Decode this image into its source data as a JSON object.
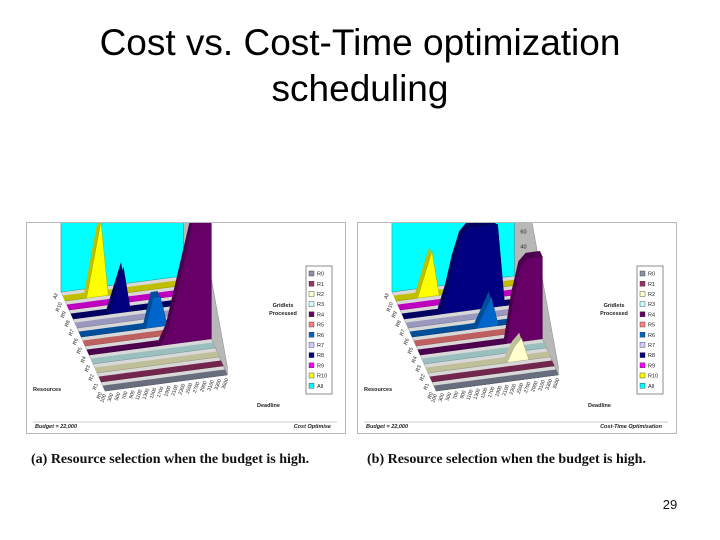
{
  "slide": {
    "title_line1": "Cost vs. Cost-Time optimization",
    "title_line2": "scheduling",
    "page_number": "29"
  },
  "chart_data": [
    {
      "type": "area",
      "panel": "a",
      "footer_left": "Budget = 22,000",
      "footer_right": "Cost Optimise",
      "caption": "(a) Resource selection when the budget is high.",
      "zlabel_line1": "Gridlets",
      "zlabel_line2": "Processed",
      "ylabel": "Resources",
      "xlabel": "Deadline",
      "zlim": [
        0,
        200
      ],
      "z_ticks": [
        "0",
        "20",
        "40",
        "60",
        "80",
        "100",
        "120",
        "140",
        "160",
        "180",
        "200"
      ],
      "x_ticks": [
        "100",
        "300",
        "500",
        "700",
        "900",
        "1100",
        "1300",
        "1500",
        "1700",
        "1900",
        "2100",
        "2300",
        "2500",
        "2700",
        "2900",
        "3100",
        "3300",
        "3500"
      ],
      "legend": [
        "R0",
        "R1",
        "R2",
        "R3",
        "R4",
        "R5",
        "R6",
        "R7",
        "R8",
        "R9",
        "R10",
        "All"
      ],
      "series_order": [
        "All",
        "R10",
        "R9",
        "R8",
        "R7",
        "R6",
        "R5",
        "R4",
        "R3",
        "R2",
        "R1",
        "R0"
      ],
      "colors": {
        "R0": "#8c93a8",
        "R1": "#993366",
        "R2": "#ffffcc",
        "R3": "#ccffff",
        "R4": "#660066",
        "R5": "#ff8080",
        "R6": "#0066cc",
        "R7": "#ccccff",
        "R8": "#000080",
        "R9": "#ff00ff",
        "R10": "#ffff00",
        "All": "#00ffff"
      },
      "series": [
        {
          "name": "All",
          "values": [
            200,
            200,
            200,
            200,
            200,
            200,
            200,
            200,
            200,
            200,
            200,
            200,
            200,
            200,
            200,
            200,
            200,
            200
          ]
        },
        {
          "name": "R10",
          "values": [
            0,
            0,
            0,
            0,
            50,
            100,
            0,
            0,
            0,
            0,
            0,
            0,
            0,
            0,
            0,
            0,
            0,
            0
          ]
        },
        {
          "name": "R9",
          "values": [
            0,
            0,
            0,
            0,
            0,
            0,
            0,
            0,
            0,
            0,
            0,
            0,
            0,
            0,
            0,
            0,
            0,
            0
          ]
        },
        {
          "name": "R8",
          "values": [
            0,
            0,
            0,
            0,
            0,
            0,
            30,
            60,
            0,
            0,
            0,
            0,
            0,
            0,
            0,
            0,
            0,
            0
          ]
        },
        {
          "name": "R7",
          "values": [
            0,
            0,
            0,
            0,
            0,
            0,
            0,
            0,
            0,
            0,
            0,
            0,
            0,
            0,
            0,
            0,
            0,
            0
          ]
        },
        {
          "name": "R6",
          "values": [
            0,
            0,
            0,
            0,
            0,
            0,
            0,
            0,
            0,
            0,
            40,
            40,
            0,
            0,
            0,
            0,
            0,
            0
          ]
        },
        {
          "name": "R5",
          "values": [
            0,
            0,
            0,
            0,
            0,
            0,
            0,
            0,
            0,
            0,
            0,
            0,
            0,
            0,
            0,
            0,
            0,
            0
          ]
        },
        {
          "name": "R4",
          "values": [
            0,
            0,
            0,
            0,
            0,
            0,
            0,
            0,
            0,
            0,
            0,
            20,
            60,
            100,
            140,
            180,
            200,
            200
          ]
        },
        {
          "name": "R3",
          "values": [
            0,
            0,
            0,
            0,
            0,
            0,
            0,
            0,
            0,
            0,
            0,
            0,
            0,
            0,
            0,
            0,
            0,
            0
          ]
        },
        {
          "name": "R2",
          "values": [
            0,
            0,
            0,
            0,
            0,
            0,
            0,
            0,
            0,
            0,
            0,
            0,
            0,
            0,
            0,
            0,
            0,
            0
          ]
        },
        {
          "name": "R1",
          "values": [
            0,
            0,
            0,
            0,
            0,
            0,
            0,
            0,
            0,
            0,
            0,
            0,
            0,
            0,
            0,
            0,
            0,
            0
          ]
        },
        {
          "name": "R0",
          "values": [
            0,
            0,
            0,
            0,
            0,
            0,
            0,
            0,
            0,
            0,
            0,
            0,
            0,
            0,
            0,
            0,
            0,
            0
          ]
        }
      ]
    },
    {
      "type": "area",
      "panel": "b",
      "footer_left": "Budget = 22,000",
      "footer_right": "Cost-Time Optimisation",
      "caption": "(b) Resource selection when the budget is high.",
      "zlabel_line1": "Gridlets",
      "zlabel_line2": "Processed",
      "ylabel": "Resources",
      "xlabel": "Deadline",
      "zlim": [
        0,
        200
      ],
      "z_ticks": [
        "0",
        "20",
        "40",
        "60",
        "80",
        "100",
        "120",
        "140",
        "160",
        "180",
        "200"
      ],
      "x_ticks": [
        "100",
        "300",
        "500",
        "700",
        "900",
        "1100",
        "1300",
        "1500",
        "1700",
        "1900",
        "2100",
        "2300",
        "2500",
        "2700",
        "2900",
        "3100",
        "3300",
        "3500"
      ],
      "legend": [
        "R0",
        "R1",
        "R2",
        "R3",
        "R4",
        "R5",
        "R6",
        "R7",
        "R8",
        "R9",
        "R10",
        "All"
      ],
      "series_order": [
        "All",
        "R10",
        "R9",
        "R8",
        "R7",
        "R6",
        "R5",
        "R4",
        "R3",
        "R2",
        "R1",
        "R0"
      ],
      "colors": {
        "R0": "#8c93a8",
        "R1": "#993366",
        "R2": "#ffffcc",
        "R3": "#ccffff",
        "R4": "#660066",
        "R5": "#ff8080",
        "R6": "#0066cc",
        "R7": "#ccccff",
        "R8": "#000080",
        "R9": "#ff00ff",
        "R10": "#ffff00",
        "All": "#00ffff"
      },
      "series": [
        {
          "name": "All",
          "values": [
            200,
            200,
            200,
            200,
            200,
            200,
            200,
            200,
            200,
            200,
            200,
            200,
            200,
            200,
            200,
            200,
            200,
            200
          ]
        },
        {
          "name": "R10",
          "values": [
            0,
            0,
            0,
            0,
            30,
            60,
            0,
            0,
            0,
            0,
            0,
            0,
            0,
            0,
            0,
            0,
            0,
            0
          ]
        },
        {
          "name": "R9",
          "values": [
            0,
            0,
            0,
            0,
            0,
            0,
            0,
            0,
            0,
            0,
            0,
            0,
            0,
            0,
            0,
            0,
            0,
            0
          ]
        },
        {
          "name": "R8",
          "values": [
            0,
            0,
            0,
            0,
            0,
            0,
            30,
            70,
            100,
            110,
            110,
            110,
            110,
            110,
            0,
            0,
            0,
            0
          ]
        },
        {
          "name": "R7",
          "values": [
            0,
            0,
            0,
            0,
            0,
            0,
            0,
            0,
            0,
            0,
            0,
            0,
            0,
            0,
            0,
            0,
            0,
            0
          ]
        },
        {
          "name": "R6",
          "values": [
            0,
            0,
            0,
            0,
            0,
            0,
            0,
            0,
            0,
            0,
            20,
            40,
            0,
            0,
            0,
            0,
            0,
            0
          ]
        },
        {
          "name": "R5",
          "values": [
            0,
            0,
            0,
            0,
            0,
            0,
            0,
            0,
            0,
            0,
            0,
            0,
            0,
            0,
            0,
            0,
            0,
            0
          ]
        },
        {
          "name": "R4",
          "values": [
            0,
            0,
            0,
            0,
            0,
            0,
            0,
            0,
            0,
            0,
            0,
            0,
            0,
            60,
            100,
            110,
            110,
            110
          ]
        },
        {
          "name": "R3",
          "values": [
            0,
            0,
            0,
            0,
            0,
            0,
            0,
            0,
            0,
            0,
            0,
            0,
            0,
            0,
            0,
            0,
            0,
            0
          ]
        },
        {
          "name": "R2",
          "values": [
            0,
            0,
            0,
            0,
            0,
            0,
            0,
            0,
            0,
            0,
            0,
            0,
            20,
            30,
            0,
            0,
            0,
            0
          ]
        },
        {
          "name": "R1",
          "values": [
            0,
            0,
            0,
            0,
            0,
            0,
            0,
            0,
            0,
            0,
            0,
            0,
            0,
            0,
            0,
            0,
            0,
            0
          ]
        },
        {
          "name": "R0",
          "values": [
            0,
            0,
            0,
            0,
            0,
            0,
            0,
            0,
            0,
            0,
            0,
            0,
            0,
            0,
            0,
            0,
            0,
            0
          ]
        }
      ]
    }
  ]
}
